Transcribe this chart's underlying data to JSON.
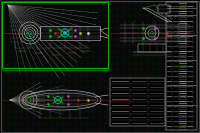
{
  "bg_color": "#080808",
  "border_color": "#555555",
  "green_color": "#00bb00",
  "white_color": "#c8c8c8",
  "red_color": "#cc2222",
  "cyan_color": "#00bbbb",
  "yellow_color": "#bbbb00",
  "blue_color": "#4444bb",
  "magenta_color": "#bb44bb",
  "dot_color": "#004400",
  "figsize": [
    2.0,
    1.33
  ],
  "dpi": 100
}
